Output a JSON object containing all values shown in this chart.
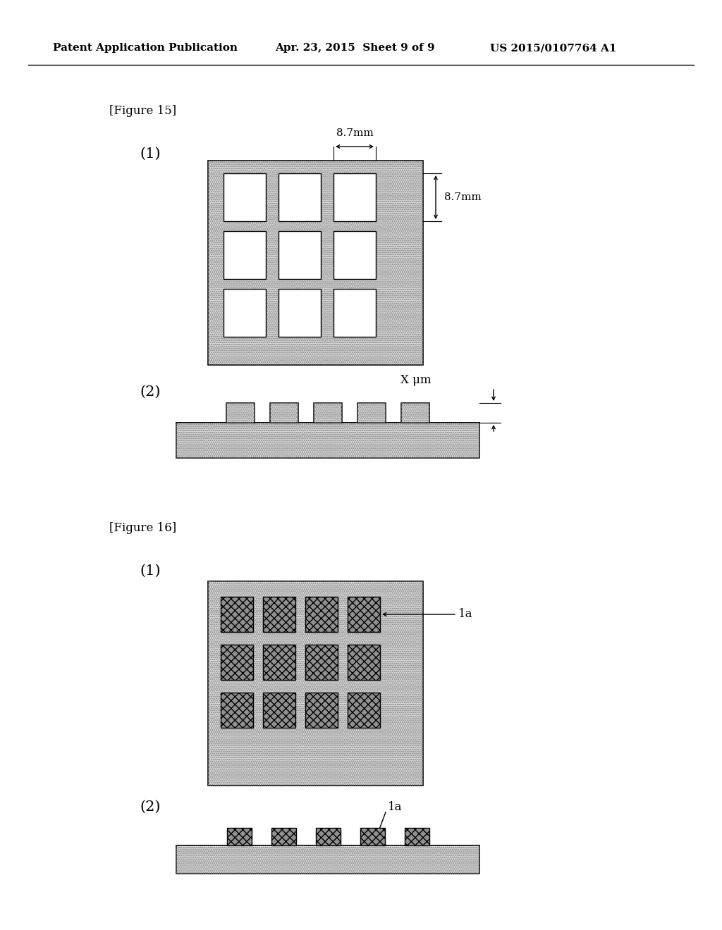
{
  "bg_color": "#ffffff",
  "header_left": "Patent Application Publication",
  "header_mid": "Apr. 23, 2015  Sheet 9 of 9",
  "header_right": "US 2015/0107764 A1",
  "fig15_label": "[Figure 15]",
  "fig16_label": "[Figure 16]",
  "label_1a": "1a",
  "dim_label_horiz": "8.7mm",
  "dim_label_vert": "8.7mm",
  "x_um_label": "X μm",
  "dot_bg_color": "#d8d8d8",
  "dark_sq_color": "#909090"
}
